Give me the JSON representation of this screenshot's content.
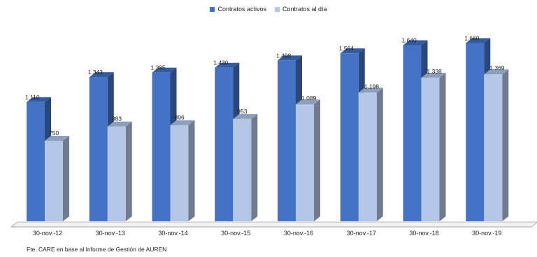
{
  "chart_data": {
    "type": "bar",
    "categories": [
      "30-nov.-12",
      "30-nov.-13",
      "30-nov.-14",
      "30-nov.-15",
      "30-nov.-16",
      "30-nov.-17",
      "30-nov.-18",
      "30-nov.-19"
    ],
    "series": [
      {
        "name": "Contratos activos",
        "values": [
          1110,
          1343,
          1385,
          1430,
          1498,
          1564,
          1640,
          1660
        ],
        "labels": [
          "1.110",
          "1.343",
          "1.385",
          "1.430",
          "1.498",
          "1.564",
          "1.640",
          "1.660"
        ],
        "color": "#4472C4"
      },
      {
        "name": "Contratos al día",
        "values": [
          750,
          883,
          896,
          953,
          1089,
          1198,
          1338,
          1369
        ],
        "labels": [
          "750",
          "883",
          "896",
          "953",
          "1.089",
          "1.198",
          "1.338",
          "1.369"
        ],
        "color": "#B4C7E7"
      }
    ],
    "ylim": [
      0,
      1800
    ],
    "grid": false,
    "legend_position": "top-center",
    "style": "3d-column"
  },
  "source_note": "Fte. CARE en base al Informe de Gestión de AUREN"
}
